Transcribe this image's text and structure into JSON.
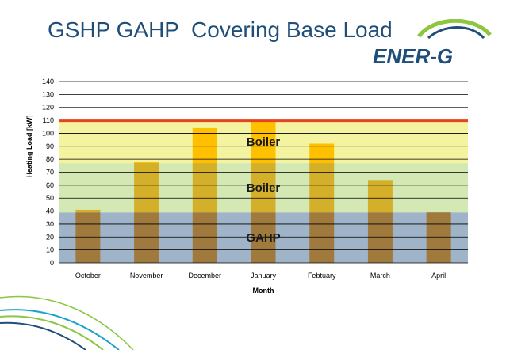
{
  "slide": {
    "title": "GSHP GAHP  Covering Base Load",
    "logo_text": "ENER-G"
  },
  "colors": {
    "gahp_band": "#9fb4c8",
    "boiler_band": "#d4e8b4",
    "boiler_peak_band": "#f4f4a0",
    "max_line": "#e8431c",
    "bar_base": "#a07a3c",
    "bar_mid": "#d4b02a",
    "bar_top": "#ffc000",
    "title": "#1f4e79",
    "logo_blue": "#1f4e79",
    "logo_green": "#8dc63f",
    "swoosh_teal": "#1aa3c8"
  },
  "chart_data": {
    "type": "bar",
    "xlabel": "Month",
    "ylabel": "Heating Load [kW]",
    "ylim": [
      0,
      140
    ],
    "yticks": [
      0,
      10,
      20,
      30,
      40,
      50,
      60,
      70,
      80,
      90,
      100,
      110,
      120,
      130,
      140
    ],
    "grid": true,
    "categories": [
      "October",
      "November",
      "December",
      "January",
      "Febtuary",
      "March",
      "April"
    ],
    "values": [
      41,
      78,
      104,
      110,
      92,
      64,
      39
    ],
    "bands": [
      {
        "label": "GAHP",
        "from": 0,
        "to": 39
      },
      {
        "label": "Boiler",
        "from": 39,
        "to": 77
      },
      {
        "label": "Boiler",
        "from": 77,
        "to": 110
      }
    ],
    "max_line": 110
  }
}
